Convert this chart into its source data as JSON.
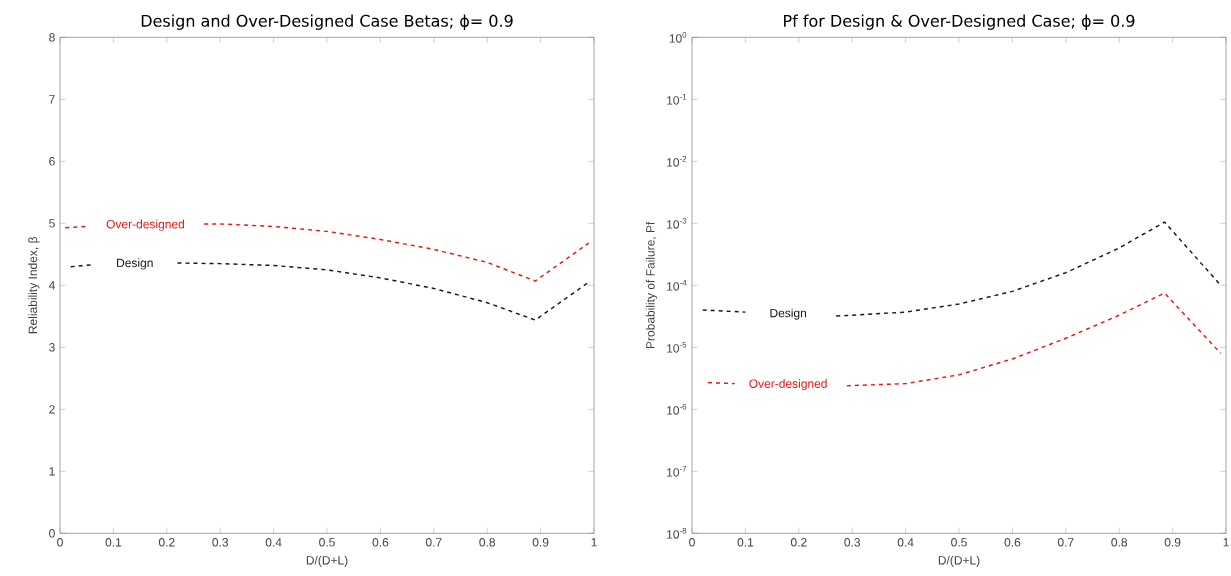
{
  "chart_data": [
    {
      "type": "line",
      "title": "Design and Over-Designed Case Betas;  ϕ= 0.9",
      "xlabel": "D/(D+L)",
      "ylabel": "Reliability Index, β",
      "xlim": [
        0,
        1
      ],
      "ylim": [
        0,
        8
      ],
      "xticks": [
        0,
        0.1,
        0.2,
        0.3,
        0.4,
        0.5,
        0.6,
        0.7,
        0.8,
        0.9,
        1
      ],
      "yticks": [
        0,
        1,
        2,
        3,
        4,
        5,
        6,
        7,
        8
      ],
      "line_style": "dashed",
      "marker": "none",
      "grid": false,
      "legend": false,
      "series": [
        {
          "name": "Over-designed",
          "color": "#e8161b",
          "x": [
            0.01,
            0.05,
            0.16,
            0.27,
            0.3,
            0.4,
            0.5,
            0.6,
            0.7,
            0.8,
            0.89,
            0.99
          ],
          "values": [
            4.93,
            4.95,
            null,
            4.99,
            4.99,
            4.95,
            4.87,
            4.74,
            4.58,
            4.37,
            4.07,
            4.68
          ]
        },
        {
          "name": "Design",
          "color": "#1a1a1a",
          "x": [
            0.02,
            0.06,
            0.14,
            0.22,
            0.3,
            0.4,
            0.5,
            0.6,
            0.7,
            0.8,
            0.89,
            0.99
          ],
          "values": [
            4.3,
            4.33,
            null,
            4.36,
            4.35,
            4.32,
            4.25,
            4.12,
            3.95,
            3.72,
            3.44,
            4.05
          ]
        }
      ]
    },
    {
      "type": "line",
      "title": "Pf for Design & Over-Designed Case;  ϕ= 0.9",
      "xlabel": "D/(D+L)",
      "ylabel": "Probability of Failure, Pf",
      "log": "y",
      "xlim": [
        0,
        1
      ],
      "ylim": [
        1e-08,
        1
      ],
      "xticks": [
        0,
        0.1,
        0.2,
        0.3,
        0.4,
        0.5,
        0.6,
        0.7,
        0.8,
        0.9,
        1
      ],
      "yticks": [
        {
          "value": 1e-08,
          "label": "10$^{-8}$"
        },
        {
          "value": 1e-07,
          "label": "10$^{-7}$"
        },
        {
          "value": 1e-06,
          "label": "10$^{-6}$"
        },
        {
          "value": 1e-05,
          "label": "10$^{-5}$"
        },
        {
          "value": 0.0001,
          "label": "10$^{-4}$"
        },
        {
          "value": 0.001,
          "label": "10$^{-3}$"
        },
        {
          "value": 0.01,
          "label": "10$^{-2}$"
        },
        {
          "value": 0.1,
          "label": "10$^{-1}$"
        },
        {
          "value": 1,
          "label": "10$^{0}$"
        }
      ],
      "line_style": "dashed",
      "marker": "none",
      "grid": false,
      "legend": false,
      "series": [
        {
          "name": "Design",
          "color": "#1a1a1a",
          "x": [
            0.02,
            0.1,
            0.18,
            0.27,
            0.3,
            0.4,
            0.5,
            0.6,
            0.7,
            0.8,
            0.885,
            0.99
          ],
          "values": [
            4e-05,
            3.7e-05,
            null,
            3.2e-05,
            3.3e-05,
            3.7e-05,
            5e-05,
            8e-05,
            0.00016,
            0.0004,
            0.00105,
            0.0001
          ]
        },
        {
          "name": "Over-designed",
          "color": "#e8161b",
          "x": [
            0.03,
            0.08,
            0.18,
            0.29,
            0.4,
            0.5,
            0.6,
            0.7,
            0.8,
            0.885,
            0.99
          ],
          "values": [
            2.7e-06,
            2.6e-06,
            null,
            2.4e-06,
            2.6e-06,
            3.6e-06,
            6.5e-06,
            1.4e-05,
            3.3e-05,
            7.5e-05,
            8e-06
          ]
        }
      ]
    }
  ]
}
